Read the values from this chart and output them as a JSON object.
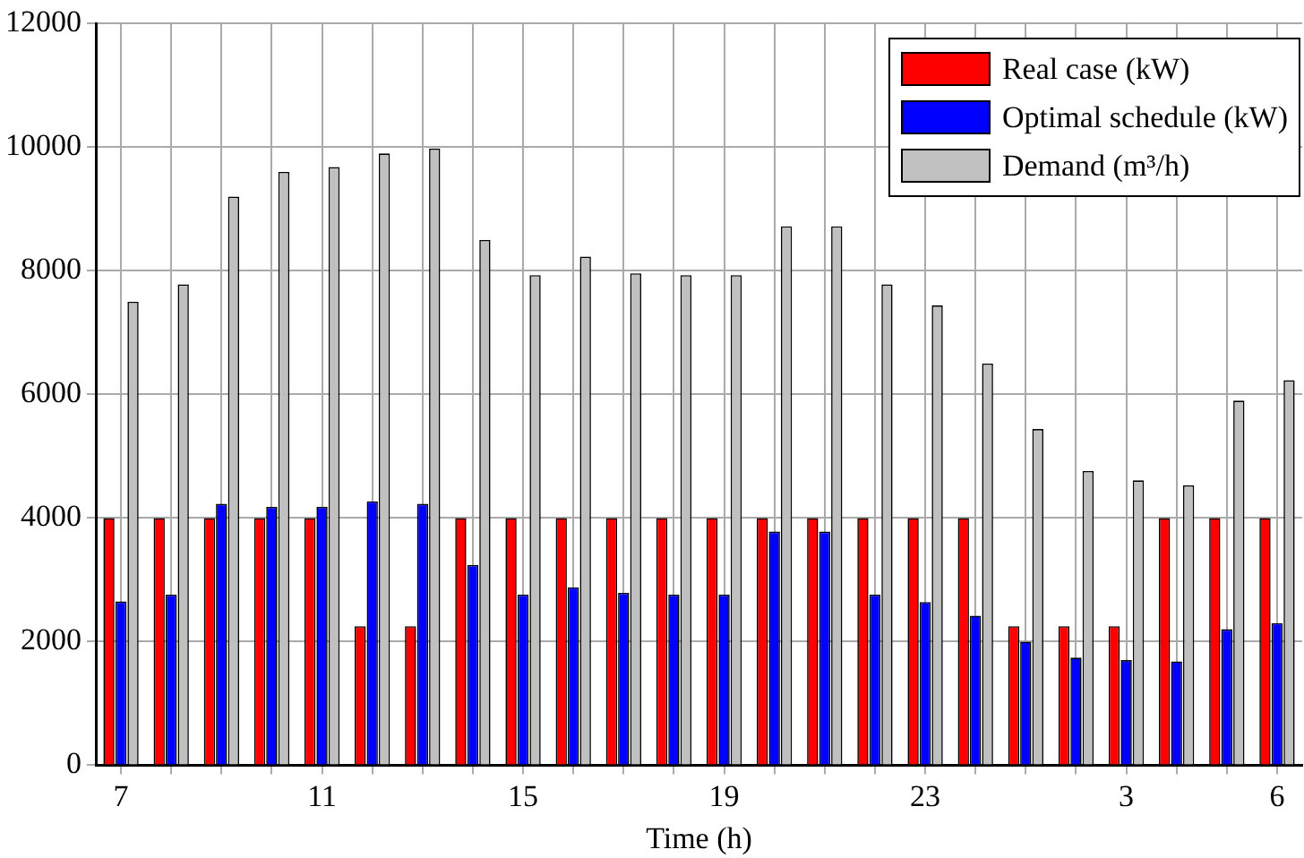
{
  "chart_data": {
    "type": "bar",
    "xlabel": "Time (h)",
    "categories": [
      "7",
      null,
      null,
      null,
      "11",
      null,
      null,
      null,
      "15",
      null,
      null,
      null,
      "19",
      null,
      null,
      null,
      "23",
      null,
      null,
      null,
      "3",
      null,
      null,
      "6"
    ],
    "series": [
      {
        "name": "Real case (kW)",
        "color": "#ff0000",
        "values": [
          4000,
          4000,
          4000,
          4000,
          4000,
          2250,
          2250,
          4000,
          4000,
          4000,
          4000,
          4000,
          4000,
          4000,
          4000,
          4000,
          4000,
          4000,
          2250,
          2250,
          2250,
          4000,
          4000,
          4000
        ]
      },
      {
        "name": "Optimal schedule (kW)",
        "color": "#0000ff",
        "values": [
          2650,
          2760,
          4230,
          4180,
          4180,
          4270,
          4230,
          3240,
          2760,
          2880,
          2790,
          2760,
          2760,
          3780,
          3780,
          2760,
          2640,
          2420,
          2000,
          1740,
          1700,
          1680,
          2200,
          2300
        ]
      },
      {
        "name": "Demand (m³/h)",
        "color": "#c0c0c0",
        "values": [
          7500,
          7780,
          9200,
          9600,
          9680,
          9900,
          9980,
          8500,
          7930,
          8230,
          7960,
          7930,
          7930,
          8720,
          8720,
          7780,
          7440,
          6500,
          5440,
          4760,
          4610,
          4530,
          5900,
          6230
        ]
      }
    ],
    "ylim": [
      0,
      12000
    ],
    "yticks": [
      0,
      2000,
      4000,
      6000,
      8000,
      10000,
      12000
    ],
    "grid": true,
    "legend": "top right"
  }
}
